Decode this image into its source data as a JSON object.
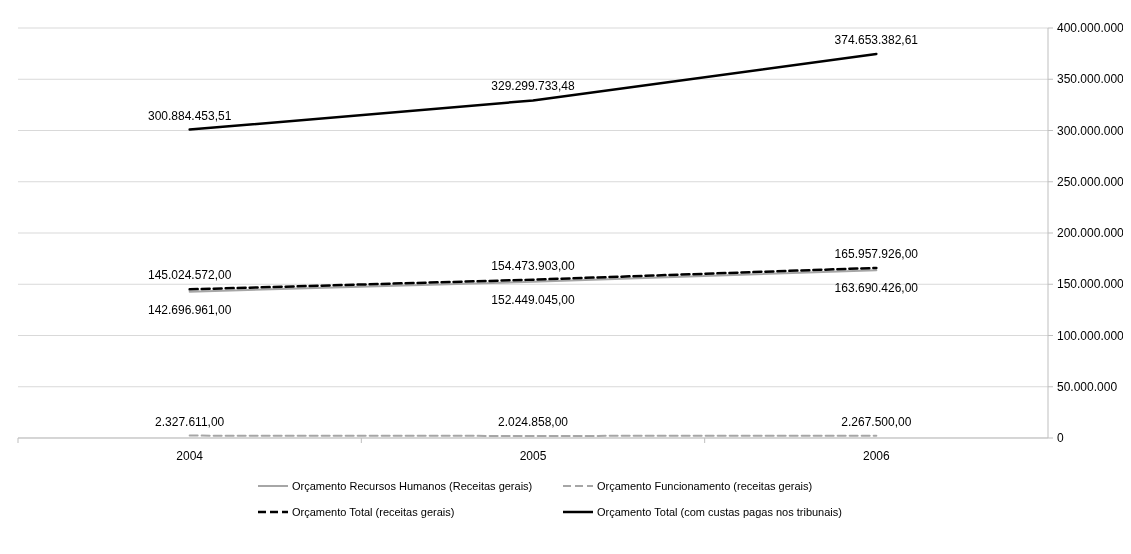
{
  "chart_data": {
    "type": "line",
    "categories": [
      "2004",
      "2005",
      "2006"
    ],
    "series": [
      {
        "name": "Orçamento Recursos Humanos (Receitas gerais)",
        "color": "#a6a6a6",
        "line_style": "solid",
        "values": [
          142696961,
          152449045,
          163690426
        ],
        "value_labels": [
          "142.696.961,00",
          "152.449.045,00",
          "163.690.426,00"
        ]
      },
      {
        "name": "Orçamento Funcionamento (receitas gerais)",
        "color": "#a6a6a6",
        "line_style": "dashed",
        "values": [
          2327611,
          2024858,
          2267500
        ],
        "value_labels": [
          "2.327.611,00",
          "2.024.858,00",
          "2.267.500,00"
        ]
      },
      {
        "name": "Orçamento Total (receitas gerais)",
        "color": "#000000",
        "line_style": "dashed",
        "values": [
          145024572,
          154473903,
          165957926
        ],
        "value_labels": [
          "145.024.572,00",
          "154.473.903,00",
          "165.957.926,00"
        ]
      },
      {
        "name": "Orçamento Total (com custas pagas nos tribunais)",
        "color": "#000000",
        "line_style": "solid",
        "values": [
          300884453.51,
          329299733.48,
          374653382.61
        ],
        "value_labels": [
          "300.884.453,51",
          "329.299.733,48",
          "374.653.382,61"
        ]
      }
    ],
    "ylim": [
      0,
      400000000
    ],
    "yticks": [
      {
        "value": 0,
        "label": "0"
      },
      {
        "value": 50000000,
        "label": "50.000.000"
      },
      {
        "value": 100000000,
        "label": "100.000.000"
      },
      {
        "value": 150000000,
        "label": "150.000.000"
      },
      {
        "value": 200000000,
        "label": "200.000.000"
      },
      {
        "value": 250000000,
        "label": "250.000.000"
      },
      {
        "value": 300000000,
        "label": "300.000.000"
      },
      {
        "value": 350000000,
        "label": "350.000.000"
      },
      {
        "value": 400000000,
        "label": "400.000.000"
      }
    ],
    "grid": "y",
    "legend": "bottom"
  }
}
